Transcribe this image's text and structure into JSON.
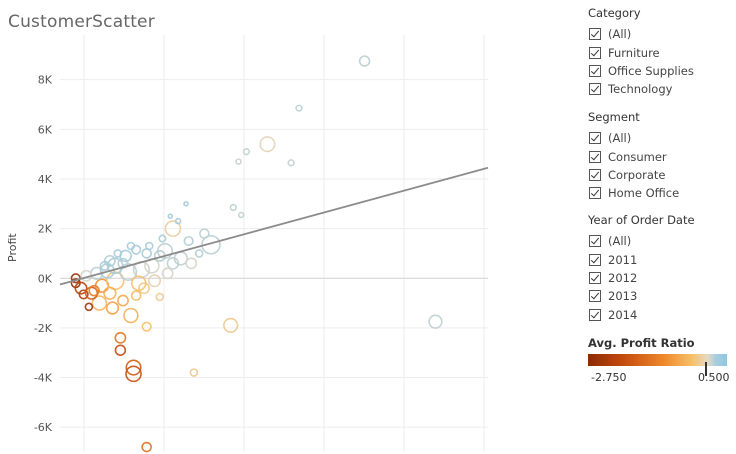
{
  "title": "CustomerScatter",
  "chart_data": {
    "type": "scatter",
    "title": "CustomerScatter",
    "xlabel": "",
    "ylabel": "Profit",
    "ylim": [
      -7000,
      9800
    ],
    "yticks": [
      8000,
      6000,
      4000,
      2000,
      0,
      -2000,
      -4000,
      -6000
    ],
    "ytick_labels": [
      "8K",
      "6K",
      "4K",
      "2K",
      "0K",
      "-2K",
      "-4K",
      "-6K"
    ],
    "xlim": [
      -300,
      16000
    ],
    "trend_line": {
      "x": [
        -300,
        16000
      ],
      "y": [
        -250,
        4450
      ]
    },
    "color_legend": {
      "title": "Avg. Profit Ratio",
      "min": -2.75,
      "max": 0.5
    },
    "points": [
      [
        11300,
        8750,
        0.32,
        120
      ],
      [
        8800,
        6850,
        0.3,
        40
      ],
      [
        8500,
        4650,
        0.28,
        40
      ],
      [
        6800,
        5100,
        0.28,
        40
      ],
      [
        6500,
        4700,
        0.25,
        30
      ],
      [
        7600,
        5400,
        0.12,
        260
      ],
      [
        6300,
        2850,
        0.3,
        40
      ],
      [
        6600,
        2550,
        0.28,
        30
      ],
      [
        5450,
        1350,
        0.32,
        400
      ],
      [
        5200,
        1800,
        0.3,
        100
      ],
      [
        4000,
        2000,
        0.05,
        280
      ],
      [
        14000,
        -1750,
        0.3,
        200
      ],
      [
        6200,
        -1900,
        0.0,
        230
      ],
      [
        3000,
        -1950,
        -0.15,
        90
      ],
      [
        2400,
        -1500,
        -0.3,
        240
      ],
      [
        2000,
        -2400,
        -1.1,
        130
      ],
      [
        2000,
        -2900,
        -1.8,
        120
      ],
      [
        2500,
        -3600,
        -1.5,
        260
      ],
      [
        2500,
        -3850,
        -1.7,
        280
      ],
      [
        4800,
        -3800,
        0.0,
        60
      ],
      [
        3000,
        -6800,
        -1.2,
        100
      ],
      [
        3500,
        -750,
        0.0,
        60
      ],
      [
        1700,
        -1200,
        -0.5,
        170
      ],
      [
        1200,
        -1000,
        -0.2,
        240
      ],
      [
        800,
        -1150,
        -2.5,
        60
      ],
      [
        600,
        -650,
        -2.2,
        90
      ],
      [
        300,
        -200,
        -2.6,
        90
      ],
      [
        300,
        0,
        -2.5,
        90
      ],
      [
        500,
        -400,
        -2.0,
        160
      ],
      [
        900,
        -600,
        -1.5,
        170
      ],
      [
        1300,
        -300,
        -0.7,
        200
      ],
      [
        1800,
        -100,
        -0.1,
        360
      ],
      [
        2300,
        250,
        0.3,
        330
      ],
      [
        2800,
        350,
        0.25,
        300
      ],
      [
        3200,
        500,
        0.2,
        240
      ],
      [
        3700,
        1100,
        0.3,
        260
      ],
      [
        4300,
        800,
        0.3,
        200
      ],
      [
        4700,
        600,
        0.2,
        130
      ],
      [
        1800,
        500,
        0.4,
        280
      ],
      [
        2200,
        900,
        0.4,
        150
      ],
      [
        2600,
        1150,
        0.4,
        90
      ],
      [
        3100,
        1300,
        0.4,
        60
      ],
      [
        3600,
        1600,
        0.4,
        50
      ],
      [
        4200,
        2300,
        0.4,
        30
      ],
      [
        4500,
        3000,
        0.4,
        20
      ],
      [
        3900,
        2500,
        0.4,
        20
      ],
      [
        1500,
        300,
        0.4,
        230
      ],
      [
        1100,
        200,
        0.3,
        170
      ],
      [
        700,
        100,
        0.2,
        130
      ],
      [
        1600,
        700,
        0.35,
        130
      ],
      [
        2100,
        600,
        0.35,
        110
      ],
      [
        3300,
        -100,
        0.1,
        160
      ],
      [
        2900,
        -400,
        0.0,
        130
      ],
      [
        2600,
        -700,
        -0.2,
        100
      ],
      [
        2100,
        -900,
        -0.4,
        130
      ],
      [
        1600,
        -600,
        -0.3,
        170
      ],
      [
        1000,
        -500,
        -1.0,
        120
      ],
      [
        4000,
        600,
        0.3,
        150
      ],
      [
        3500,
        900,
        0.35,
        130
      ],
      [
        5000,
        1000,
        0.35,
        60
      ],
      [
        4600,
        1500,
        0.35,
        90
      ],
      [
        3000,
        1000,
        0.4,
        100
      ],
      [
        2400,
        1300,
        0.4,
        60
      ],
      [
        1900,
        1000,
        0.4,
        60
      ],
      [
        1400,
        500,
        0.4,
        90
      ],
      [
        2700,
        -200,
        -0.1,
        240
      ],
      [
        3800,
        200,
        0.2,
        130
      ]
    ]
  },
  "filters": [
    {
      "title": "Category",
      "items": [
        "(All)",
        "Furniture",
        "Office Supplies",
        "Technology"
      ]
    },
    {
      "title": "Segment",
      "items": [
        "(All)",
        "Consumer",
        "Corporate",
        "Home Office"
      ]
    },
    {
      "title": "Year of Order Date",
      "items": [
        "(All)",
        "2011",
        "2012",
        "2013",
        "2014"
      ]
    }
  ],
  "legend": {
    "title": "Avg. Profit Ratio",
    "min_label": "-2.750",
    "max_label": "0.500"
  },
  "colors": {
    "positive": "#8ec6df",
    "neutral": "#e8d8c0",
    "orange": "#f0913a",
    "negative": "#a2330c",
    "trend": "#8c8c8c",
    "grid": "#ededed",
    "zero": "#d0d0d0"
  }
}
